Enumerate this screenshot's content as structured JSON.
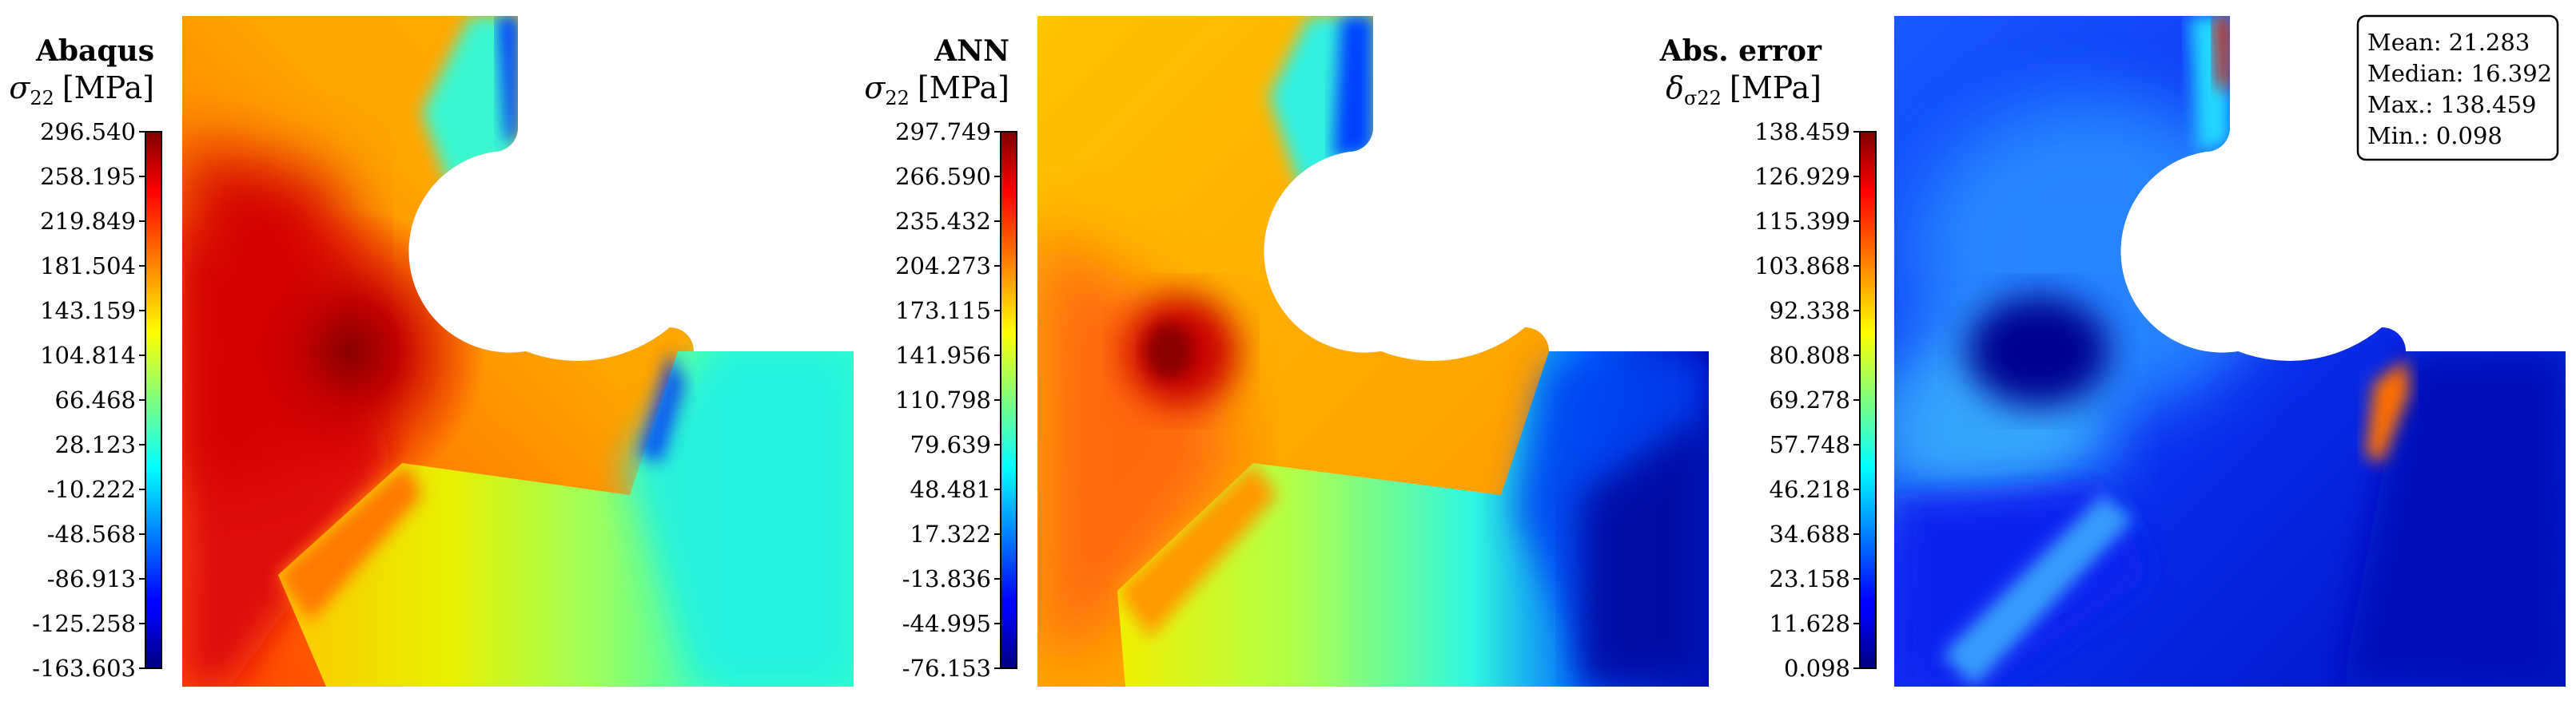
{
  "panels": [
    {
      "title": "Abaqus",
      "quantity_symbol": "σ",
      "quantity_subscript": "22",
      "unit": "[MPa]",
      "colorbar_ticks": [
        "296.540",
        "258.195",
        "219.849",
        "181.504",
        "143.159",
        "104.814",
        "66.468",
        "28.123",
        "-10.222",
        "-48.568",
        "-86.913",
        "-125.258",
        "-163.603"
      ]
    },
    {
      "title": "ANN",
      "quantity_symbol": "σ",
      "quantity_subscript": "22",
      "unit": "[MPa]",
      "colorbar_ticks": [
        "297.749",
        "266.590",
        "235.432",
        "204.273",
        "173.115",
        "141.956",
        "110.798",
        "79.639",
        "48.481",
        "17.322",
        "-13.836",
        "-44.995",
        "-76.153"
      ]
    },
    {
      "title": "Abs. error",
      "quantity_symbol": "δ",
      "quantity_subscript": "σ22",
      "unit": "[MPa]",
      "colorbar_ticks": [
        "138.459",
        "126.929",
        "115.399",
        "103.868",
        "92.338",
        "80.808",
        "69.278",
        "57.748",
        "46.218",
        "34.688",
        "23.158",
        "11.628",
        "0.098"
      ]
    }
  ],
  "stats": [
    "Mean: 21.283",
    "Median: 16.392",
    "Max.: 138.459",
    "Min.: 0.098"
  ],
  "chart_data": [
    {
      "type": "heatmap",
      "title": "Abaqus",
      "colorbar_label": "σ22 [MPa]",
      "colormap": "jet",
      "range": [
        -163.603,
        296.54
      ],
      "colorbar_ticks": [
        296.54,
        258.195,
        219.849,
        181.504,
        143.159,
        104.814,
        66.468,
        28.123,
        -10.222,
        -48.568,
        -86.913,
        -125.258,
        -163.603
      ]
    },
    {
      "type": "heatmap",
      "title": "ANN",
      "colorbar_label": "σ22 [MPa]",
      "colormap": "jet",
      "range": [
        -76.153,
        297.749
      ],
      "colorbar_ticks": [
        297.749,
        266.59,
        235.432,
        204.273,
        173.115,
        141.956,
        110.798,
        79.639,
        48.481,
        17.322,
        -13.836,
        -44.995,
        -76.153
      ]
    },
    {
      "type": "heatmap",
      "title": "Abs. error",
      "colorbar_label": "δσ22 [MPa]",
      "colormap": "jet",
      "range": [
        0.098,
        138.459
      ],
      "colorbar_ticks": [
        138.459,
        126.929,
        115.399,
        103.868,
        92.338,
        80.808,
        69.278,
        57.748,
        46.218,
        34.688,
        23.158,
        11.628,
        0.098
      ],
      "statistics": {
        "mean": 21.283,
        "median": 16.392,
        "max": 138.459,
        "min": 0.098
      }
    }
  ]
}
